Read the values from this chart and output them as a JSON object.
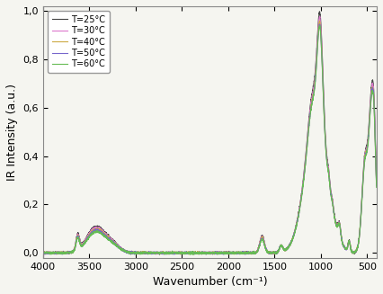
{
  "title": "",
  "xlabel": "Wavenumber (cm⁻¹)",
  "ylabel": "IR Intensity (a.u.)",
  "xlim": [
    4000,
    400
  ],
  "ylim": [
    -0.02,
    1.02
  ],
  "yticks": [
    0.0,
    0.2,
    0.4,
    0.6,
    0.8,
    1.0
  ],
  "xticks": [
    4000,
    3500,
    3000,
    2500,
    2000,
    1500,
    1000,
    500
  ],
  "series": [
    {
      "label": "T=25°C",
      "color": "#444444",
      "lw": 0.8
    },
    {
      "label": "T=30°C",
      "color": "#dd77cc",
      "lw": 0.8
    },
    {
      "label": "T=40°C",
      "color": "#ccaa44",
      "lw": 0.8
    },
    {
      "label": "T=50°C",
      "color": "#7766cc",
      "lw": 0.8
    },
    {
      "label": "T=60°C",
      "color": "#66bb55",
      "lw": 0.8
    }
  ],
  "background_color": "#f5f5f0",
  "legend_fontsize": 7,
  "axis_fontsize": 9,
  "tick_fontsize": 8
}
